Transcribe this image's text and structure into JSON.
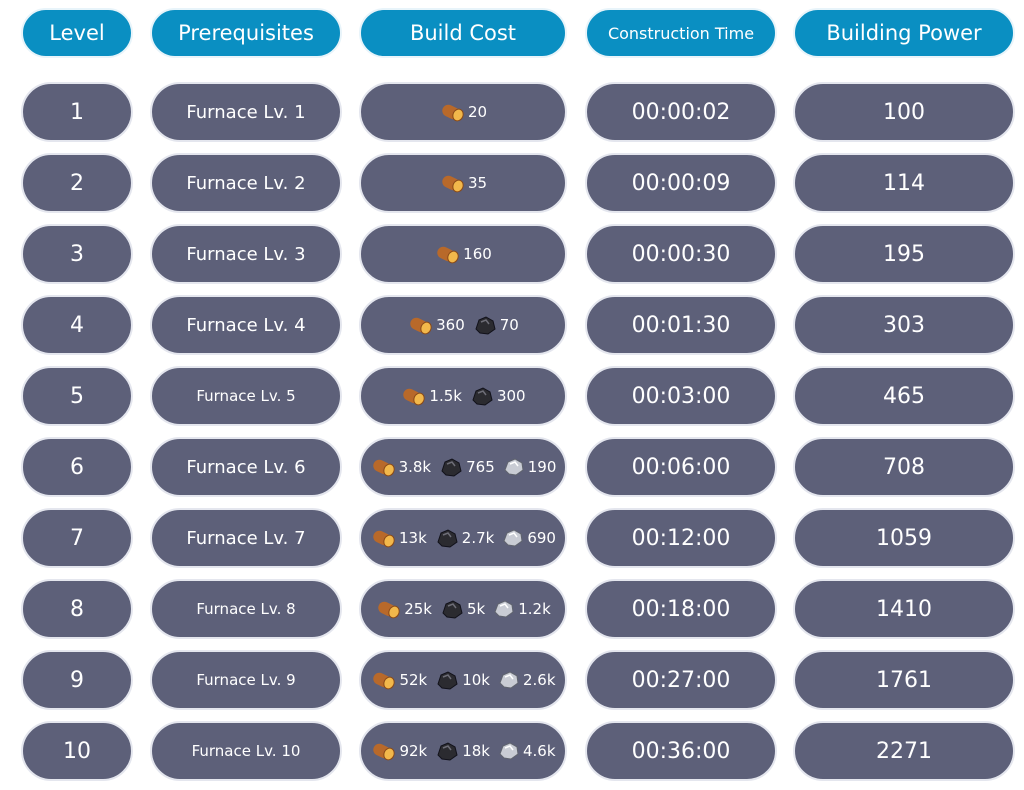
{
  "header": {
    "columns": [
      "Level",
      "Prerequisites",
      "Build Cost",
      "Construction Time",
      "Building Power"
    ]
  },
  "table": {
    "rows": [
      {
        "level": "1",
        "prerequisite": "Furnace Lv. 1",
        "cost": [
          "20"
        ],
        "time": "00:00:02",
        "power": "100"
      },
      {
        "level": "2",
        "prerequisite": "Furnace Lv. 2",
        "cost": [
          "35"
        ],
        "time": "00:00:09",
        "power": "114"
      },
      {
        "level": "3",
        "prerequisite": "Furnace Lv. 3",
        "cost": [
          "160"
        ],
        "time": "00:00:30",
        "power": "195"
      },
      {
        "level": "4",
        "prerequisite": "Furnace Lv. 4",
        "cost": [
          "360",
          "70"
        ],
        "time": "00:01:30",
        "power": "303"
      },
      {
        "level": "5",
        "prerequisite": "Furnace Lv. 5",
        "cost": [
          "1.5k",
          "300"
        ],
        "time": "00:03:00",
        "power": "465"
      },
      {
        "level": "6",
        "prerequisite": "Furnace Lv. 6",
        "cost": [
          "3.8k",
          "765",
          "190"
        ],
        "time": "00:06:00",
        "power": "708"
      },
      {
        "level": "7",
        "prerequisite": "Furnace Lv. 7",
        "cost": [
          "13k",
          "2.7k",
          "690"
        ],
        "time": "00:12:00",
        "power": "1059"
      },
      {
        "level": "8",
        "prerequisite": "Furnace Lv. 8",
        "cost": [
          "25k",
          "5k",
          "1.2k"
        ],
        "time": "00:18:00",
        "power": "1410"
      },
      {
        "level": "9",
        "prerequisite": "Furnace Lv. 9",
        "cost": [
          "52k",
          "10k",
          "2.6k"
        ],
        "time": "00:27:00",
        "power": "1761"
      },
      {
        "level": "10",
        "prerequisite": "Furnace Lv. 10",
        "cost": [
          "92k",
          "18k",
          "4.6k"
        ],
        "time": "00:36:00",
        "power": "2271"
      }
    ]
  }
}
